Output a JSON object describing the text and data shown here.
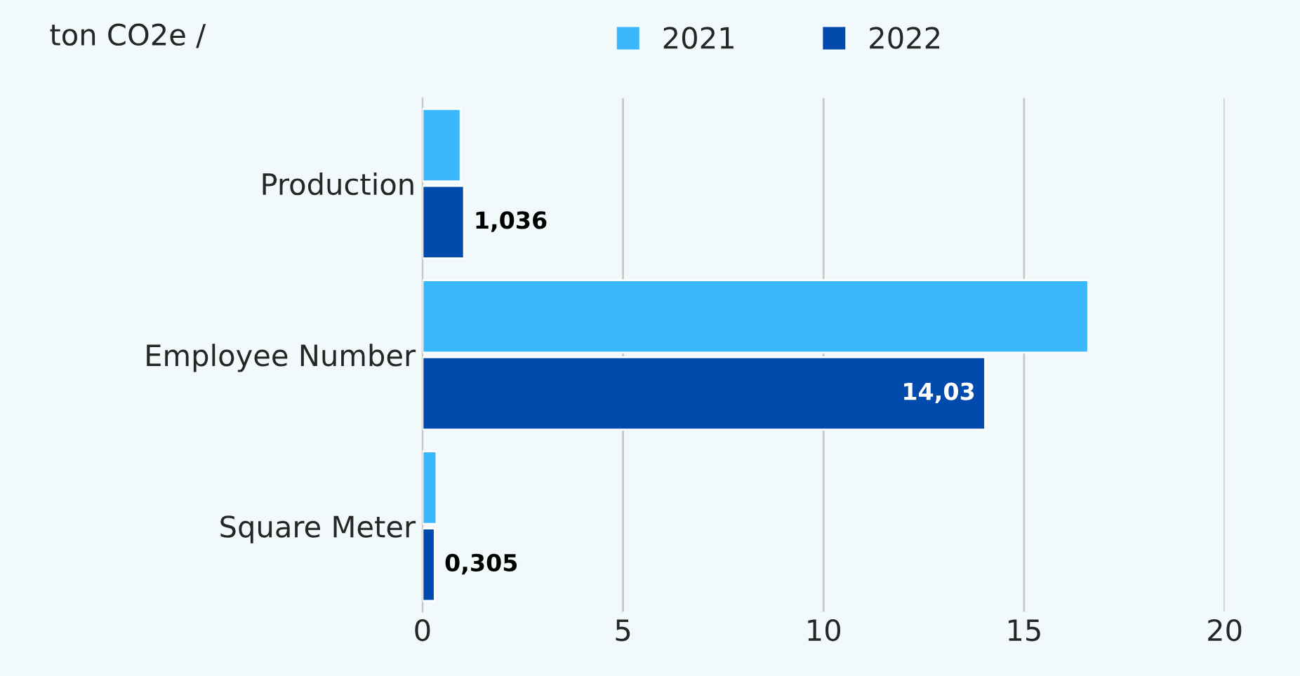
{
  "chart_data": {
    "type": "bar",
    "orientation": "horizontal",
    "ylabel": "ton CO2e /",
    "categories": [
      "Production",
      "Employee Number",
      "Square Meter"
    ],
    "series": [
      {
        "name": "2021",
        "color": "#3bb8fb",
        "values": [
          0.95,
          16.6,
          0.35
        ]
      },
      {
        "name": "2022",
        "color": "#034aad",
        "values": [
          1.036,
          14.03,
          0.305
        ],
        "value_labels": [
          "1,036",
          "14,03",
          "0,305"
        ]
      }
    ],
    "xlim": [
      0,
      20
    ],
    "xticks": [
      0,
      5,
      10,
      15,
      20
    ],
    "grid": "x",
    "legend": "top"
  }
}
